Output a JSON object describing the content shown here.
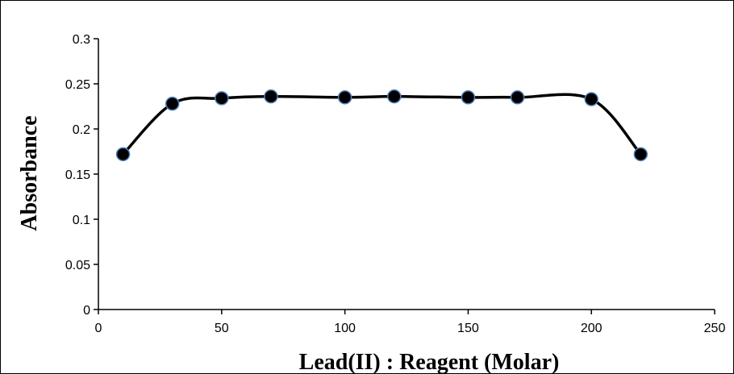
{
  "chart_data": {
    "type": "scatter",
    "title": "",
    "xlabel": "Lead(II)  :  Reagent (Molar)",
    "ylabel": "Absorbance",
    "xlim": [
      0,
      250
    ],
    "ylim": [
      0,
      0.3
    ],
    "x_ticks": [
      0,
      50,
      100,
      150,
      200,
      250
    ],
    "y_ticks": [
      0,
      0.05,
      0.1,
      0.15,
      0.2,
      0.25,
      0.3
    ],
    "x_tick_labels": [
      "0",
      "50",
      "100",
      "150",
      "200",
      "250"
    ],
    "y_tick_labels": [
      "0",
      "0.05",
      "0.1",
      "0.15",
      "0.2",
      "0.25",
      "0.3"
    ],
    "grid": false,
    "smooth_line": true,
    "series": [
      {
        "x": [
          10,
          30,
          50,
          70,
          100,
          120,
          150,
          170,
          200,
          220
        ],
        "y": [
          0.172,
          0.228,
          0.234,
          0.236,
          0.235,
          0.236,
          0.235,
          0.235,
          0.233,
          0.172
        ],
        "line_color": "#000000",
        "marker_fill": "#000000",
        "marker_edge": "#4f81bd"
      }
    ]
  }
}
